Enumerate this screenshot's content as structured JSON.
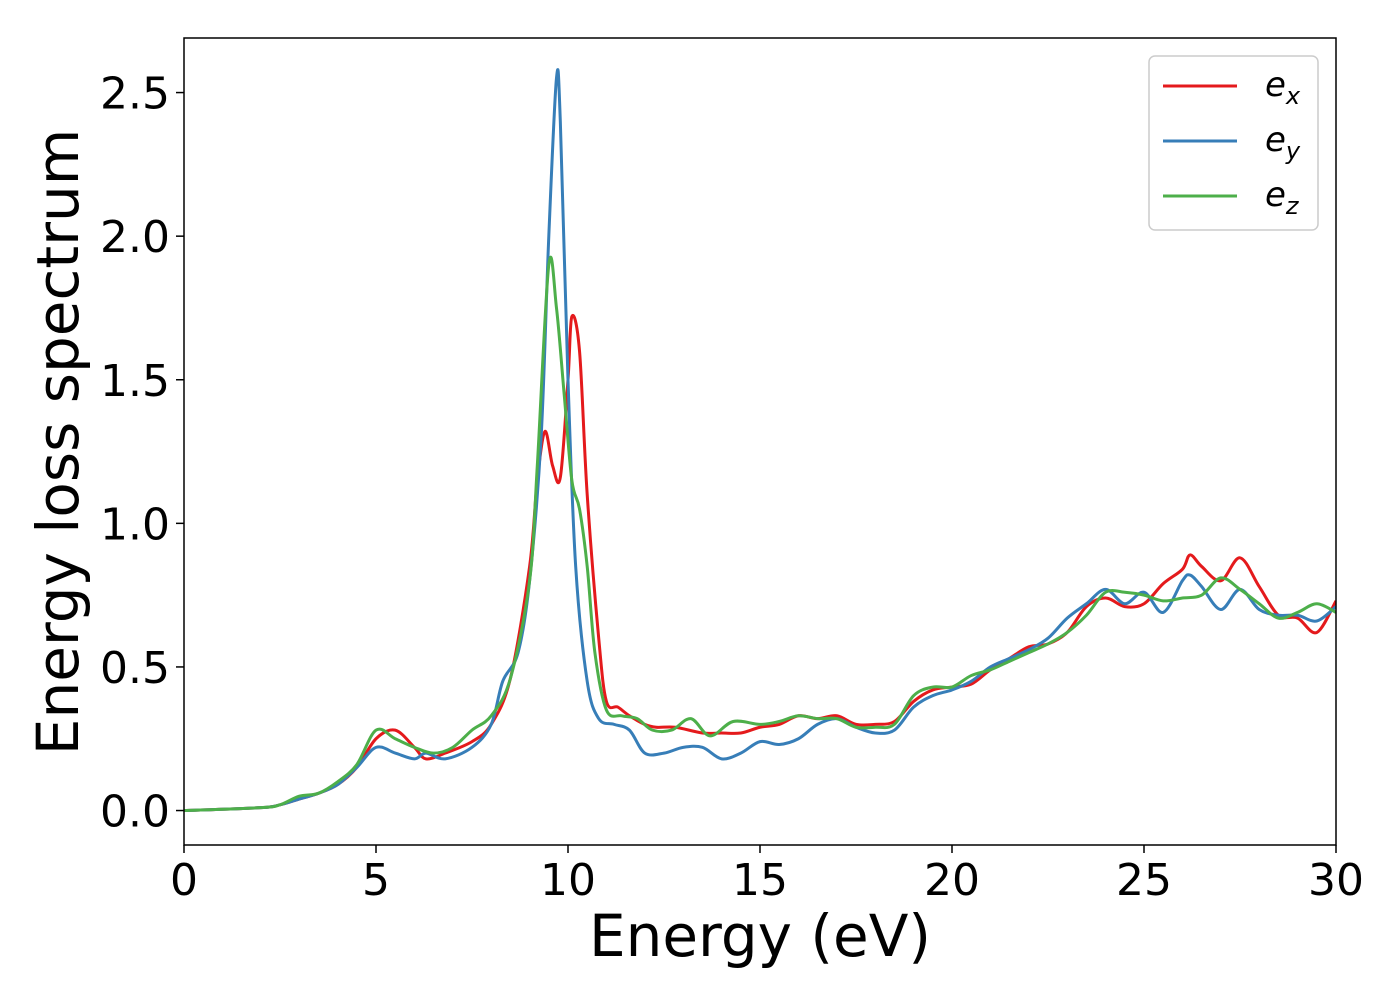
{
  "chart_data": {
    "type": "line",
    "title": "",
    "xlabel": "Energy (eV)",
    "ylabel": "Energy loss spectrum",
    "xlim": [
      0,
      30
    ],
    "ylim": [
      -0.12,
      2.69
    ],
    "xticks": [
      0,
      5,
      10,
      15,
      20,
      25,
      30
    ],
    "xtick_labels": [
      "0",
      "5",
      "10",
      "15",
      "20",
      "25",
      "30"
    ],
    "yticks": [
      0.0,
      0.5,
      1.0,
      1.5,
      2.0,
      2.5
    ],
    "ytick_labels": [
      "0.0",
      "0.5",
      "1.0",
      "1.5",
      "2.0",
      "2.5"
    ],
    "grid": false,
    "legend": {
      "position": "top-right",
      "entries": [
        {
          "base": "e",
          "sub": "x"
        },
        {
          "base": "e",
          "sub": "y"
        },
        {
          "base": "e",
          "sub": "z"
        }
      ]
    },
    "series": [
      {
        "name": "e_x",
        "color": "#e41a1c",
        "x": [
          0,
          2,
          2.5,
          3,
          3.5,
          4,
          4.5,
          5,
          5.5,
          6,
          6.3,
          6.8,
          7.5,
          8,
          8.5,
          9,
          9.2,
          9.4,
          9.6,
          9.8,
          10.0,
          10.1,
          10.3,
          10.5,
          10.8,
          11,
          11.3,
          11.6,
          12,
          12.3,
          12.8,
          13.5,
          14,
          14.5,
          15,
          15.5,
          16,
          16.5,
          17,
          17.5,
          18,
          18.5,
          19,
          19.5,
          20,
          20.5,
          21,
          21.5,
          22,
          22.5,
          23,
          23.5,
          24,
          24.5,
          25,
          25.5,
          26,
          26.2,
          26.5,
          27,
          27.5,
          28,
          28.5,
          29,
          29.5,
          30
        ],
        "y": [
          0.0,
          0.01,
          0.02,
          0.04,
          0.06,
          0.09,
          0.15,
          0.25,
          0.28,
          0.22,
          0.18,
          0.2,
          0.24,
          0.3,
          0.46,
          0.85,
          1.15,
          1.32,
          1.2,
          1.16,
          1.5,
          1.72,
          1.6,
          1.1,
          0.6,
          0.38,
          0.36,
          0.33,
          0.3,
          0.29,
          0.29,
          0.27,
          0.27,
          0.27,
          0.29,
          0.3,
          0.33,
          0.32,
          0.33,
          0.3,
          0.3,
          0.31,
          0.38,
          0.42,
          0.43,
          0.44,
          0.49,
          0.53,
          0.57,
          0.58,
          0.62,
          0.71,
          0.74,
          0.71,
          0.72,
          0.79,
          0.84,
          0.89,
          0.85,
          0.8,
          0.88,
          0.78,
          0.68,
          0.67,
          0.62,
          0.73
        ]
      },
      {
        "name": "e_y",
        "color": "#377eb8",
        "x": [
          0,
          2,
          2.5,
          3,
          3.5,
          4,
          4.5,
          5,
          5.5,
          6,
          6.3,
          6.8,
          7.5,
          8,
          8.3,
          8.7,
          9,
          9.3,
          9.5,
          9.7,
          9.8,
          10.0,
          10.2,
          10.5,
          10.8,
          11.2,
          11.6,
          12,
          12.5,
          13,
          13.5,
          14,
          14.5,
          15,
          15.5,
          16,
          16.5,
          17,
          17.5,
          18,
          18.5,
          19,
          19.5,
          20,
          20.5,
          21,
          21.5,
          22,
          22.5,
          23,
          23.5,
          24,
          24.5,
          25,
          25.5,
          26,
          26.2,
          26.5,
          27,
          27.5,
          28,
          28.5,
          29,
          29.5,
          30
        ],
        "y": [
          0.0,
          0.01,
          0.02,
          0.04,
          0.06,
          0.09,
          0.15,
          0.22,
          0.2,
          0.18,
          0.2,
          0.18,
          0.22,
          0.3,
          0.45,
          0.55,
          0.8,
          1.3,
          2.0,
          2.55,
          2.4,
          1.5,
          0.85,
          0.45,
          0.32,
          0.3,
          0.28,
          0.2,
          0.2,
          0.22,
          0.22,
          0.18,
          0.2,
          0.24,
          0.23,
          0.25,
          0.3,
          0.32,
          0.29,
          0.27,
          0.28,
          0.36,
          0.4,
          0.42,
          0.45,
          0.5,
          0.53,
          0.56,
          0.6,
          0.67,
          0.72,
          0.77,
          0.72,
          0.76,
          0.69,
          0.8,
          0.82,
          0.78,
          0.7,
          0.77,
          0.7,
          0.68,
          0.68,
          0.66,
          0.71
        ]
      },
      {
        "name": "e_z",
        "color": "#4daf4a",
        "x": [
          0,
          2,
          2.5,
          3,
          3.5,
          4,
          4.5,
          5,
          5.5,
          6,
          6.5,
          7,
          7.5,
          8,
          8.5,
          9,
          9.2,
          9.5,
          9.7,
          9.9,
          10.1,
          10.3,
          10.5,
          10.7,
          11,
          11.4,
          11.8,
          12.2,
          12.7,
          13.2,
          13.7,
          14.3,
          15,
          15.5,
          16,
          16.5,
          17,
          17.5,
          18,
          18.5,
          19,
          19.5,
          20,
          20.5,
          21,
          21.5,
          22,
          22.5,
          23,
          23.5,
          24,
          24.5,
          25,
          25.5,
          26,
          26.5,
          27,
          27.5,
          28,
          28.5,
          29,
          29.5,
          30
        ],
        "y": [
          0.0,
          0.01,
          0.02,
          0.05,
          0.06,
          0.1,
          0.16,
          0.28,
          0.25,
          0.22,
          0.2,
          0.22,
          0.28,
          0.33,
          0.46,
          0.8,
          1.2,
          1.9,
          1.75,
          1.45,
          1.15,
          1.05,
          0.85,
          0.55,
          0.35,
          0.33,
          0.32,
          0.28,
          0.28,
          0.32,
          0.26,
          0.31,
          0.3,
          0.31,
          0.33,
          0.32,
          0.32,
          0.29,
          0.29,
          0.3,
          0.4,
          0.43,
          0.43,
          0.47,
          0.49,
          0.52,
          0.55,
          0.58,
          0.62,
          0.68,
          0.76,
          0.76,
          0.75,
          0.73,
          0.74,
          0.75,
          0.81,
          0.77,
          0.72,
          0.67,
          0.69,
          0.72,
          0.69
        ]
      }
    ]
  }
}
